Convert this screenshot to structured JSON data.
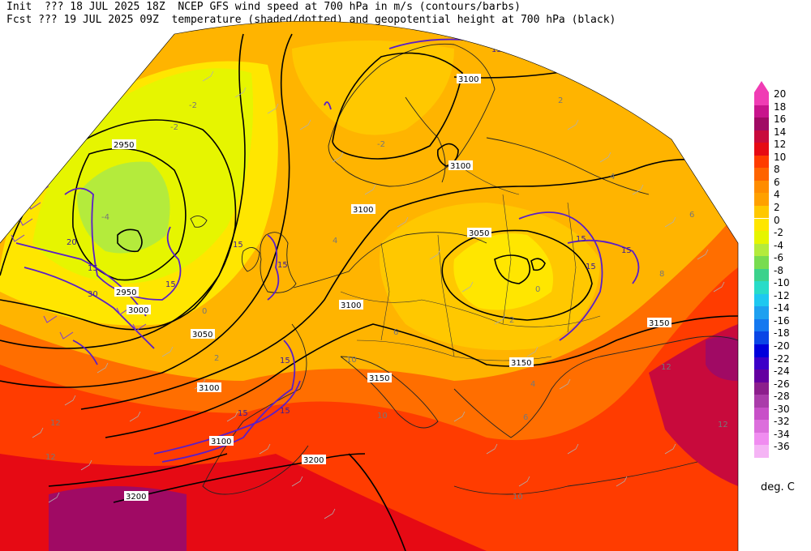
{
  "header": {
    "line1": "Init  ??? 18 JUL 2025 18Z  NCEP GFS wind speed at 700 hPa in m/s (contours/barbs)",
    "line2": "Fcst ??? 19 JUL 2025 09Z  temperature (shaded/dotted) and geopotential height at 700 hPa (black)"
  },
  "legend": {
    "units": "deg. C",
    "levels": [
      "20",
      "18",
      "16",
      "14",
      "12",
      "10",
      "8",
      "6",
      "4",
      "2",
      "0",
      "-2",
      "-4",
      "-6",
      "-8",
      "-10",
      "-12",
      "-14",
      "-16",
      "-18",
      "-20",
      "-22",
      "-24",
      "-26",
      "-28",
      "-30",
      "-32",
      "-34",
      "-36"
    ],
    "colors": [
      "#f03cb4",
      "#c8148c",
      "#a00a64",
      "#c80a3c",
      "#e60a14",
      "#ff3c00",
      "#ff6400",
      "#ff8c00",
      "#ffa000",
      "#ffc800",
      "#ffe600",
      "#e6f500",
      "#b4eb3c",
      "#78dc50",
      "#3cd28c",
      "#28dcc8",
      "#1ec8f0",
      "#1ea0f0",
      "#1478f0",
      "#0a46e6",
      "#0000dc",
      "#3c00c8",
      "#6400a0",
      "#8c1e8c",
      "#aa3caa",
      "#c850c8",
      "#dc6edc",
      "#f08cf0",
      "#f5b4f5"
    ]
  },
  "height_labels": [
    "2950",
    "2950",
    "3000",
    "3050",
    "3100",
    "3100",
    "3100",
    "3100",
    "3100",
    "3050",
    "3150",
    "3150",
    "3100",
    "3150",
    "3200",
    "3200"
  ],
  "wind_labels": [
    "15",
    "15",
    "15",
    "15",
    "15",
    "15",
    "15",
    "15",
    "15",
    "20",
    "30",
    "15",
    "15"
  ],
  "temp_labels": [
    "-2",
    "-2",
    "-4",
    "0",
    "2",
    "2",
    "4",
    "4",
    "6",
    "6",
    "8",
    "10",
    "12",
    "12",
    "12",
    "10",
    "12",
    "10",
    "6",
    "2",
    "4",
    "0",
    "-2"
  ]
}
